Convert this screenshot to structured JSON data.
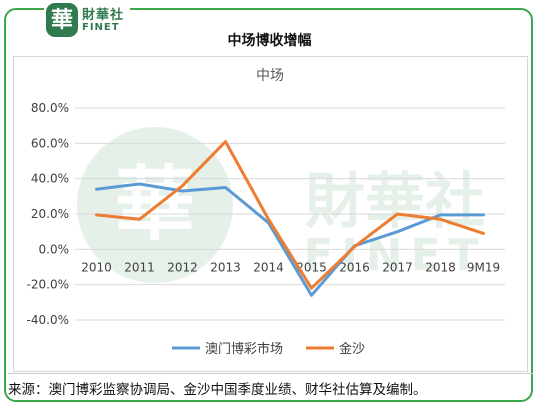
{
  "header": {
    "logo_char": "華",
    "logo_cn": "財華社",
    "logo_en": "FINET",
    "title": "中场博收增幅"
  },
  "watermark": {
    "cn": "財華社",
    "en": "FINET"
  },
  "source": "来源：澳门博彩监察协调局、金沙中国季度业绩、财华社估算及编制。",
  "colors": {
    "frame": "#39a84a",
    "series_macau": "#5b9bd5",
    "series_sands": "#ed7d31"
  },
  "chart_data": {
    "type": "line",
    "title": "中场",
    "categories": [
      "2010",
      "2011",
      "2012",
      "2013",
      "2014",
      "2015",
      "2016",
      "2017",
      "2018",
      "9M19"
    ],
    "series": [
      {
        "name": "澳门博彩市场",
        "values": [
          34,
          37,
          33,
          35,
          15,
          -26,
          2,
          10,
          19.5,
          19.5
        ]
      },
      {
        "name": "金沙",
        "values": [
          19.5,
          17,
          36,
          61,
          17,
          -22,
          1.5,
          20,
          17,
          9
        ]
      }
    ],
    "ylim": [
      -40,
      80
    ],
    "yticks": [
      "80.0%",
      "60.0%",
      "40.0%",
      "20.0%",
      "0.0%",
      "-20.0%",
      "-40.0%"
    ],
    "ytick_values": [
      80,
      60,
      40,
      20,
      0,
      -20,
      -40
    ],
    "grid": true,
    "legend": "bottom"
  }
}
